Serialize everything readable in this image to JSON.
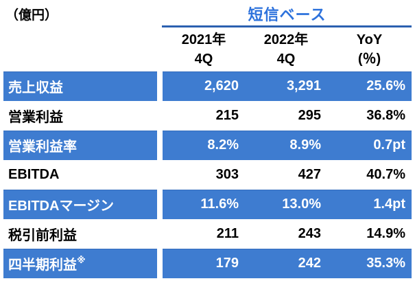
{
  "unit_label": "（億円）",
  "header": {
    "group_title": "短信ベース",
    "columns": [
      {
        "line1": "2021年",
        "line2": "4Q"
      },
      {
        "line1": "2022年",
        "line2": "4Q"
      },
      {
        "line1": "YoY",
        "line2": "(％)"
      }
    ]
  },
  "rows": [
    {
      "label": "売上収益",
      "sup": "",
      "values": [
        "2,620",
        "3,291",
        "25.6%"
      ],
      "highlight": true
    },
    {
      "label": "営業利益",
      "sup": "",
      "values": [
        "215",
        "295",
        "36.8%"
      ],
      "highlight": false
    },
    {
      "label": "営業利益率",
      "sup": "",
      "values": [
        "8.2%",
        "8.9%",
        "0.7pt"
      ],
      "highlight": true
    },
    {
      "label": "EBITDA",
      "sup": "",
      "values": [
        "303",
        "427",
        "40.7%"
      ],
      "highlight": false
    },
    {
      "label": "EBITDAマージン",
      "sup": "",
      "values": [
        "11.6%",
        "13.0%",
        "1.4pt"
      ],
      "highlight": true
    },
    {
      "label": "税引前利益",
      "sup": "",
      "values": [
        "211",
        "243",
        "14.9%"
      ],
      "highlight": false
    },
    {
      "label": "四半期利益",
      "sup": "※",
      "values": [
        "179",
        "242",
        "35.3%"
      ],
      "highlight": true
    }
  ],
  "colors": {
    "highlight_row_bg": "#3e7cd0",
    "highlight_row_text": "#ffffff",
    "group_title_text": "#2d72dc",
    "group_underline": "#2b60b0",
    "plain_text": "#000000"
  },
  "chart_data": {
    "type": "table",
    "title": "短信ベース",
    "unit": "億円",
    "columns": [
      "2021年4Q",
      "2022年4Q",
      "YoY(%)"
    ],
    "rows": [
      {
        "label": "売上収益",
        "2021_4Q": 2620,
        "2022_4Q": 3291,
        "yoy": "25.6%"
      },
      {
        "label": "営業利益",
        "2021_4Q": 215,
        "2022_4Q": 295,
        "yoy": "36.8%"
      },
      {
        "label": "営業利益率",
        "2021_4Q": "8.2%",
        "2022_4Q": "8.9%",
        "yoy": "0.7pt"
      },
      {
        "label": "EBITDA",
        "2021_4Q": 303,
        "2022_4Q": 427,
        "yoy": "40.7%"
      },
      {
        "label": "EBITDAマージン",
        "2021_4Q": "11.6%",
        "2022_4Q": "13.0%",
        "yoy": "1.4pt"
      },
      {
        "label": "税引前利益",
        "2021_4Q": 211,
        "2022_4Q": 243,
        "yoy": "14.9%"
      },
      {
        "label": "四半期利益※",
        "2021_4Q": 179,
        "2022_4Q": 242,
        "yoy": "35.3%"
      }
    ]
  }
}
